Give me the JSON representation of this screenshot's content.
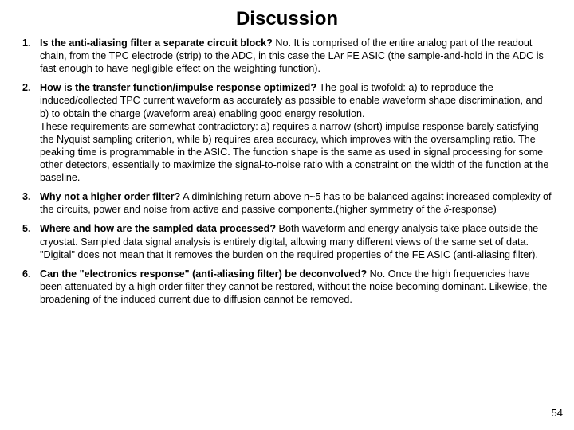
{
  "title": "Discussion",
  "page_number": "54",
  "items": [
    {
      "n": "1.",
      "q": "Is the anti-aliasing filter a separate circuit block?",
      "a": " No. It is comprised of the entire analog part of the readout chain, from the TPC electrode (strip) to the ADC, in this case the LAr FE ASIC (the sample-and-hold in the ADC is fast enough to have negligible effect on the weighting function)."
    },
    {
      "n": "2.",
      "q": "How is the transfer function/impulse response optimized?",
      "a": " The goal is twofold: a) to reproduce the induced/collected TPC current waveform as accurately as possible to enable waveform shape discrimination, and b) to obtain the charge (waveform area) enabling good energy resolution.",
      "a2": "These requirements are somewhat contradictory: a) requires a narrow (short) impulse response barely satisfying the Nyquist sampling criterion, while b) requires area accuracy, which improves with the oversampling ratio. The peaking time is programmable in the ASIC. The function shape is the same as used in signal processing for some other detectors, essentially to maximize the signal-to-noise ratio with a constraint on the width of the function at the baseline."
    },
    {
      "n": "3.",
      "q": "Why not a higher order filter?",
      "a_pre": " A diminishing return above n~5 has to be balanced against increased complexity of the circuits, power and noise from active and passive components.(higher symmetry of the ",
      "a_sym": "δ",
      "a_post": "-response)"
    },
    {
      "n": "5.",
      "q": "Where and how are the sampled data processed?",
      "a": " Both waveform and energy analysis take place outside the cryostat. Sampled data signal analysis is entirely digital, allowing many different views of the same set of data. \"Digital\" does not mean that it removes the burden on the required properties of the FE ASIC (anti-aliasing filter)."
    },
    {
      "n": "6.",
      "q": "Can the \"electronics response\" (anti-aliasing filter) be deconvolved?",
      "a": "  No. Once the high frequencies have been attenuated by a high order filter they cannot be restored, without the noise becoming dominant. Likewise, the broadening of the induced current due to diffusion cannot be removed."
    }
  ]
}
